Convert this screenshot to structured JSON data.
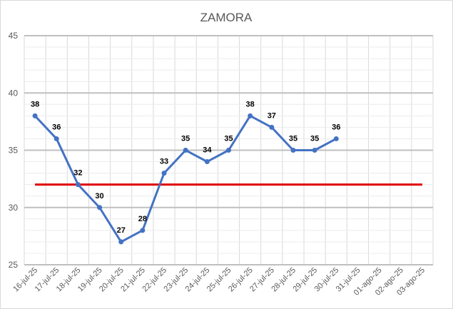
{
  "chart_data": {
    "type": "line",
    "title": "ZAMORA",
    "xlabel": "",
    "ylabel": "",
    "ylim": [
      25,
      45
    ],
    "yticks": [
      25,
      30,
      35,
      40,
      45
    ],
    "grid": true,
    "categories": [
      "16-jul-25",
      "17-jul-25",
      "18-jul-25",
      "19-jul-25",
      "20-jul-25",
      "21-jul-25",
      "22-jul-25",
      "23-jul-25",
      "24-jul-25",
      "25-jul-25",
      "26-jul-25",
      "27-jul-25",
      "28-jul-25",
      "29-jul-25",
      "30-jul-25",
      "31-jul-25",
      "01-ago-25",
      "02-ago-25",
      "03-ago-25"
    ],
    "series": [
      {
        "color": "#4472c4",
        "values": [
          38,
          36,
          32,
          30,
          27,
          28,
          33,
          35,
          34,
          35,
          38,
          37,
          35,
          35,
          36,
          null,
          null,
          null,
          null
        ],
        "data_labels": true
      },
      {
        "color": "#e00000",
        "values": [
          32,
          32,
          32,
          32,
          32,
          32,
          32,
          32,
          32,
          32,
          32,
          32,
          32,
          32,
          32,
          32,
          32,
          32,
          32
        ],
        "data_labels": false
      }
    ]
  }
}
